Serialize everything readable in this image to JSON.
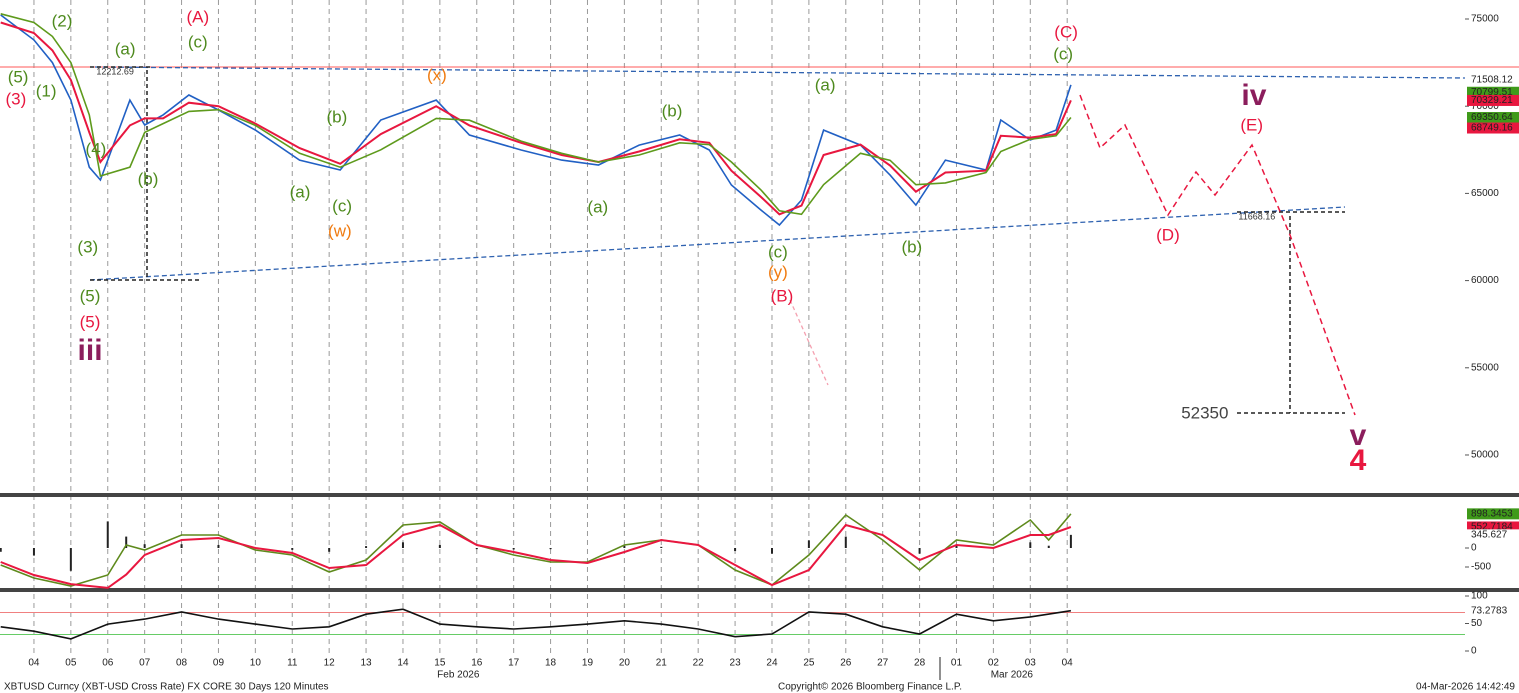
{
  "chart_data": [
    {
      "type": "line",
      "x": [
        -0.9,
        0,
        0.5,
        1,
        1.5,
        1.8,
        2.6,
        3,
        3.5,
        4.2,
        5,
        6,
        7.2,
        8.3,
        9.4,
        10.9,
        11.8,
        13.2,
        14.3,
        15.3,
        16.4,
        17.5,
        18.3,
        18.9,
        19.7,
        20.2,
        20.8,
        21.4,
        22.4,
        23.2,
        23.9,
        24.7,
        25.8,
        26.2,
        27,
        27.7,
        28.1
      ],
      "series": [
        {
          "color": "#2160c4",
          "values": [
            75230,
            73800,
            72500,
            70350,
            66500,
            65770,
            70350,
            68920,
            69500,
            70640,
            69780,
            68630,
            66910,
            66340,
            69210,
            70350,
            68350,
            67490,
            66910,
            66630,
            67770,
            68350,
            67490,
            65480,
            64050,
            63190,
            64620,
            68630,
            67770,
            66050,
            64330,
            66910,
            66340,
            69210,
            68060,
            68630,
            71220
          ]
        },
        {
          "color": "#e8173f",
          "values": [
            74800,
            74200,
            73200,
            71500,
            68500,
            66800,
            68900,
            69300,
            69300,
            70200,
            70000,
            69000,
            67600,
            66700,
            68400,
            70000,
            68900,
            67900,
            67200,
            66800,
            67400,
            68100,
            67900,
            66300,
            64800,
            63800,
            64300,
            67200,
            67800,
            66600,
            65100,
            66200,
            66300,
            68300,
            68200,
            68400,
            70330
          ]
        },
        {
          "color": "#5e9a1c",
          "values": [
            75300,
            74800,
            74000,
            72500,
            69500,
            66000,
            66500,
            68500,
            69000,
            69700,
            69800,
            68900,
            67300,
            66500,
            67500,
            69300,
            69200,
            68000,
            67300,
            66800,
            67200,
            67900,
            67800,
            66800,
            65200,
            64000,
            63800,
            65500,
            67300,
            66900,
            65500,
            65600,
            66200,
            67400,
            68100,
            68300,
            69350
          ]
        }
      ],
      "ylim": [
        47820,
        76090
      ],
      "yticks": [
        50000,
        55000,
        60000,
        65000,
        70000,
        75000
      ],
      "price_markers": [
        {
          "value": 71508.12,
          "color": "#ffffff"
        },
        {
          "value": 70799.51,
          "color": "#3f9a1a"
        },
        {
          "value": 70329.21,
          "color": "#e8173f"
        },
        {
          "value": 69350.64,
          "color": "#3f9a1a"
        },
        {
          "value": 68749.16,
          "color": "#e8173f"
        }
      ],
      "annotations": [
        {
          "text": "(2)",
          "x": 0.76,
          "y": 74830,
          "color": "#4e8a1e"
        },
        {
          "text": "(5)",
          "x": -0.43,
          "y": 71620,
          "color": "#4e8a1e"
        },
        {
          "text": "(3)",
          "x": -0.49,
          "y": 70360,
          "color": "#e8173f"
        },
        {
          "text": "(1)",
          "x": 0.33,
          "y": 70810,
          "color": "#4e8a1e"
        },
        {
          "text": "(4)",
          "x": 1.68,
          "y": 67490,
          "color": "#4e8a1e"
        },
        {
          "text": "(3)",
          "x": 1.46,
          "y": 61870,
          "color": "#4e8a1e"
        },
        {
          "text": "(5)",
          "x": 1.52,
          "y": 59060,
          "color": "#4e8a1e"
        },
        {
          "text": "(5)",
          "x": 1.52,
          "y": 57570,
          "color": "#e8173f"
        },
        {
          "text": "iii",
          "x": 1.52,
          "y": 55910,
          "color": "#8b1d5c"
        },
        {
          "text": "(a)",
          "x": 2.47,
          "y": 73220,
          "color": "#4e8a1e"
        },
        {
          "text": "(b)",
          "x": 3.09,
          "y": 65770,
          "color": "#4e8a1e"
        },
        {
          "text": "(c)",
          "x": 4.44,
          "y": 73620,
          "color": "#4e8a1e"
        },
        {
          "text": "(A)",
          "x": 4.44,
          "y": 75060,
          "color": "#e8173f"
        },
        {
          "text": "12212.69",
          "x": 2.2,
          "y": 71960,
          "color": "#333333"
        },
        {
          "text": "(a)",
          "x": 7.21,
          "y": 65020,
          "color": "#4e8a1e"
        },
        {
          "text": "(b)",
          "x": 8.21,
          "y": 69320,
          "color": "#4e8a1e"
        },
        {
          "text": "(c)",
          "x": 8.35,
          "y": 64220,
          "color": "#4e8a1e"
        },
        {
          "text": "(w)",
          "x": 8.29,
          "y": 62790,
          "color": "#f07b10"
        },
        {
          "text": "(x)",
          "x": 10.92,
          "y": 71730,
          "color": "#f07b10"
        },
        {
          "text": "(a)",
          "x": 15.28,
          "y": 64160,
          "color": "#4e8a1e"
        },
        {
          "text": "(b)",
          "x": 17.29,
          "y": 69670,
          "color": "#4e8a1e"
        },
        {
          "text": "(c)",
          "x": 20.16,
          "y": 61580,
          "color": "#4e8a1e"
        },
        {
          "text": "(y)",
          "x": 20.16,
          "y": 60440,
          "color": "#f07b10"
        },
        {
          "text": "(B)",
          "x": 20.27,
          "y": 59060,
          "color": "#e8173f"
        },
        {
          "text": "(a)",
          "x": 21.44,
          "y": 71160,
          "color": "#4e8a1e"
        },
        {
          "text": "(b)",
          "x": 23.79,
          "y": 61870,
          "color": "#4e8a1e"
        },
        {
          "text": "(C)",
          "x": 27.97,
          "y": 74200,
          "color": "#e8173f"
        },
        {
          "text": "(c)",
          "x": 27.89,
          "y": 72940,
          "color": "#4e8a1e"
        },
        {
          "text": "iv",
          "x": 33.06,
          "y": 70530,
          "color": "#8b1d5c"
        },
        {
          "text": "(E)",
          "x": 33.0,
          "y": 68860,
          "color": "#e8173f"
        },
        {
          "text": "(D)",
          "x": 30.73,
          "y": 62560,
          "color": "#e8173f"
        },
        {
          "text": "11668.16",
          "x": 33.14,
          "y": 63650,
          "color": "#333333"
        },
        {
          "text": "52350",
          "x": 31.73,
          "y": 52350,
          "color": "#444444"
        },
        {
          "text": "v",
          "x": 35.88,
          "y": 51030,
          "color": "#8b1d5c"
        },
        {
          "text": "4",
          "x": 35.88,
          "y": 49600,
          "color": "#e8173f"
        }
      ]
    },
    {
      "type": "line",
      "x": [
        -0.9,
        0,
        1,
        2,
        2.5,
        3,
        4,
        5,
        6,
        7,
        8,
        9,
        10,
        11,
        12,
        13,
        14,
        15,
        16,
        17,
        18,
        19,
        20,
        21,
        22,
        23,
        24,
        25,
        26,
        27,
        27.5,
        28.1
      ],
      "series": [
        {
          "color": "#5e8a1c",
          "values": [
            -447,
            -790,
            -1000,
            -710,
            79,
            -53,
            342,
            342,
            -53,
            -184,
            -632,
            -316,
            605,
            684,
            79,
            -184,
            -368,
            -368,
            79,
            211,
            79,
            -579,
            -974,
            -184,
            868,
            211,
            -579,
            211,
            79,
            737,
            211,
            898.3453
          ]
        },
        {
          "color": "#e8173f",
          "values": [
            -370,
            -710,
            -950,
            -1050,
            -700,
            -184,
            210,
            263,
            0,
            -132,
            -526,
            -447,
            342,
            605,
            79,
            -105,
            -316,
            -395,
            -105,
            211,
            79,
            -447,
            -974,
            -579,
            605,
            342,
            -316,
            79,
            0,
            342,
            342,
            552.7184
          ]
        }
      ],
      "histogram": {
        "color": "#222222",
        "values": [
          -100,
          -200,
          -600,
          700,
          300,
          100,
          100,
          80,
          -20,
          -50,
          -100,
          50,
          150,
          80,
          -30,
          -40,
          -30,
          0,
          60,
          30,
          0,
          -80,
          -150,
          200,
          300,
          0,
          -150,
          60,
          20,
          150,
          60,
          345.627
        ]
      },
      "ylim": [
        -1053,
        1342
      ],
      "yticks": [
        -500,
        0
      ],
      "price_markers": [
        {
          "value": 898.3453,
          "color": "#3f9a1a"
        },
        {
          "value": 552.7184,
          "color": "#e8173f"
        },
        {
          "value": 345.627,
          "color": "#ffffff"
        }
      ]
    },
    {
      "type": "line",
      "x": [
        -0.9,
        0,
        1,
        2,
        3,
        4,
        5,
        6,
        7,
        8,
        9,
        10,
        11,
        12,
        13,
        14,
        15,
        16,
        17,
        18,
        19,
        20,
        21,
        22,
        23,
        24,
        25,
        26,
        27,
        28.1
      ],
      "series": [
        {
          "color": "#111111",
          "values": [
            44,
            36,
            22,
            49,
            58,
            71,
            58,
            49,
            40,
            44,
            67,
            76,
            49,
            44,
            40,
            44,
            49,
            55,
            49,
            40,
            26,
            31,
            71,
            67,
            44,
            31,
            67,
            55,
            62,
            73.2783
          ]
        }
      ],
      "hlines": [
        {
          "value": 70,
          "color": "#f08080"
        },
        {
          "value": 30,
          "color": "#66cc66"
        }
      ],
      "ylim": [
        -10.9,
        107.3
      ],
      "yticks": [
        0,
        50,
        100
      ],
      "price_markers": [
        {
          "value": 73.2783,
          "color": "#ffffff"
        }
      ],
      "xlim": [
        -0.92,
        38.78
      ],
      "xticks": [
        {
          "value": 0,
          "label": "04"
        },
        {
          "value": 1,
          "label": "05"
        },
        {
          "value": 2,
          "label": "06"
        },
        {
          "value": 3,
          "label": "07"
        },
        {
          "value": 4,
          "label": "08"
        },
        {
          "value": 5,
          "label": "09"
        },
        {
          "value": 6,
          "label": "10"
        },
        {
          "value": 7,
          "label": "11"
        },
        {
          "value": 8,
          "label": "12"
        },
        {
          "value": 9,
          "label": "13"
        },
        {
          "value": 10,
          "label": "14"
        },
        {
          "value": 11,
          "label": "15"
        },
        {
          "value": 12,
          "label": "16"
        },
        {
          "value": 13,
          "label": "17"
        },
        {
          "value": 14,
          "label": "18"
        },
        {
          "value": 15,
          "label": "19"
        },
        {
          "value": 16,
          "label": "20"
        },
        {
          "value": 17,
          "label": "21"
        },
        {
          "value": 18,
          "label": "22"
        },
        {
          "value": 19,
          "label": "23"
        },
        {
          "value": 20,
          "label": "24"
        },
        {
          "value": 21,
          "label": "25"
        },
        {
          "value": 22,
          "label": "26"
        },
        {
          "value": 23,
          "label": "27"
        },
        {
          "value": 24,
          "label": "28"
        },
        {
          "value": 25,
          "label": "01"
        },
        {
          "value": 26,
          "label": "02"
        },
        {
          "value": 27,
          "label": "03"
        },
        {
          "value": 28,
          "label": "04"
        }
      ],
      "month_labels": [
        {
          "value": 11.5,
          "label": "Feb 2026"
        },
        {
          "value": 26.5,
          "label": "Mar 2026"
        }
      ]
    }
  ],
  "footer": {
    "left": "XBTUSD Curncy (XBT-USD Cross Rate) FX CORE 30 Days 120 Minutes",
    "center": "Copyright© 2026 Bloomberg Finance L.P.",
    "right": "04-Mar-2026 14:42:49"
  }
}
